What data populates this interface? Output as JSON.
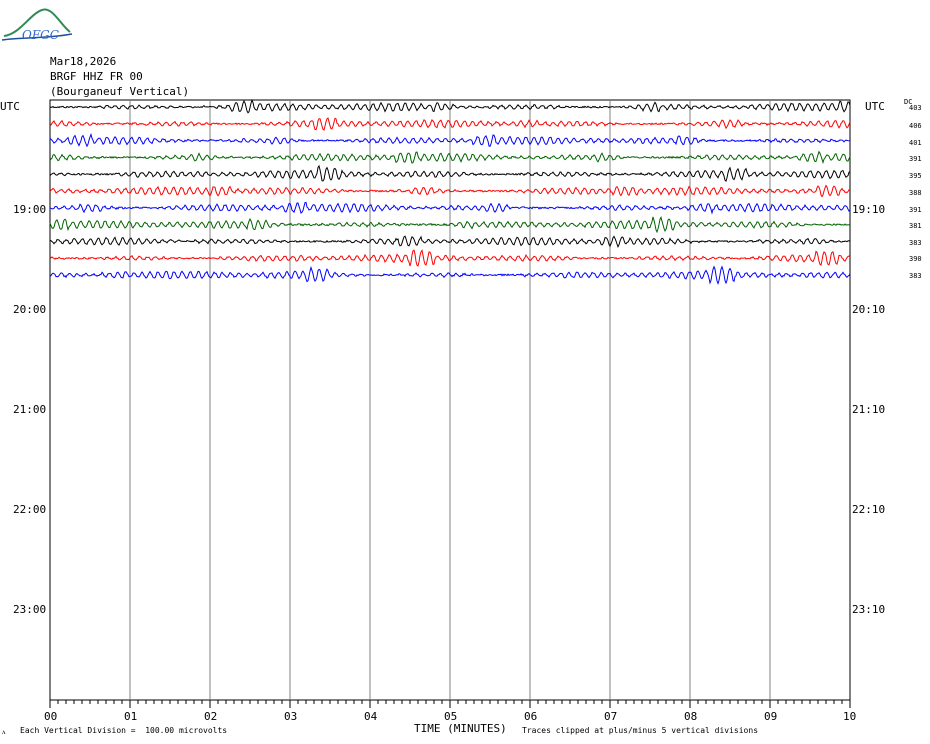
{
  "logo_text": "OFGC",
  "header": {
    "date": "Mar18,2026",
    "station": "BRGF HHZ FR 00",
    "location": "(Bourganeuf Vertical)"
  },
  "left_axis": {
    "title": "UTC",
    "labels": [
      "19:00",
      "20:00",
      "21:00",
      "22:00",
      "23:00"
    ]
  },
  "right_axis": {
    "title": "UTC",
    "labels": [
      "19:10",
      "20:10",
      "21:10",
      "22:10",
      "23:10"
    ]
  },
  "dc_title": "DC",
  "dc_values": [
    "403",
    "406",
    "401",
    "391",
    "395",
    "388",
    "391",
    "381",
    "383",
    "390",
    "383"
  ],
  "footer": {
    "division": "Each Vertical Division =  100.00 microvolts",
    "xlabel": "TIME (MINUTES)",
    "clip": "Traces clipped at plus/minus 5 vertical divisions"
  },
  "colors": {
    "trace_cycle": [
      "#000000",
      "#ff0000",
      "#0000ff",
      "#006400"
    ],
    "grid": "#808080",
    "logo": "#2e8b57"
  },
  "chart_data": {
    "type": "line",
    "xlabel": "TIME (MINUTES)",
    "xlim": [
      0,
      10
    ],
    "x_ticks": [
      "00",
      "01",
      "02",
      "03",
      "04",
      "05",
      "06",
      "07",
      "08",
      "09",
      "10"
    ],
    "trace_row_count": 11,
    "trace_colors": [
      "black",
      "red",
      "blue",
      "green",
      "black",
      "red",
      "blue",
      "green",
      "black",
      "red",
      "blue"
    ]
  }
}
